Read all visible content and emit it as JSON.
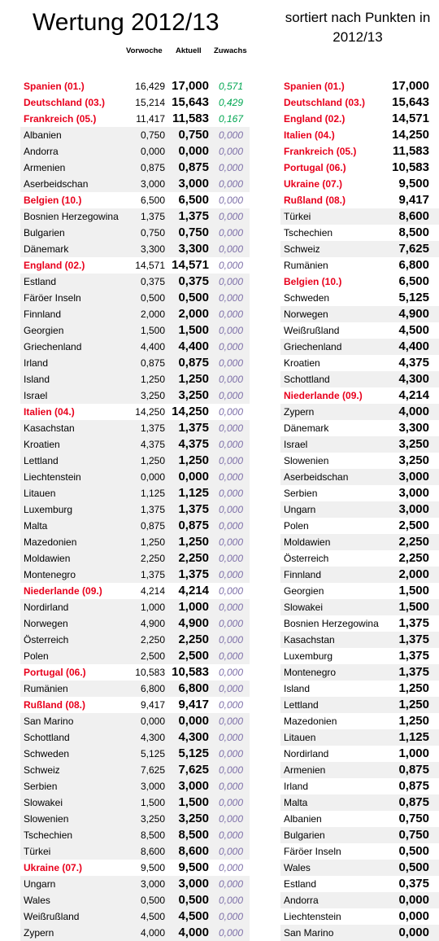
{
  "header": {
    "title": "Wertung 2012/13",
    "subtitle": "sortiert nach Punkten in 2012/13",
    "col_vorwoche": "Vorwoche",
    "col_aktuell": "Aktuell",
    "col_zuwachs": "Zuwachs"
  },
  "left_table": [
    {
      "name": "Spanien (01.)",
      "prev": "16,429",
      "curr": "17,000",
      "inc": "0,571",
      "highlight": true
    },
    {
      "name": "Deutschland (03.)",
      "prev": "15,214",
      "curr": "15,643",
      "inc": "0,429",
      "highlight": true
    },
    {
      "name": "Frankreich (05.)",
      "prev": "11,417",
      "curr": "11,583",
      "inc": "0,167",
      "highlight": true
    },
    {
      "name": "Albanien",
      "prev": "0,750",
      "curr": "0,750",
      "inc": "0,000",
      "highlight": false
    },
    {
      "name": "Andorra",
      "prev": "0,000",
      "curr": "0,000",
      "inc": "0,000",
      "highlight": false
    },
    {
      "name": "Armenien",
      "prev": "0,875",
      "curr": "0,875",
      "inc": "0,000",
      "highlight": false
    },
    {
      "name": "Aserbeidschan",
      "prev": "3,000",
      "curr": "3,000",
      "inc": "0,000",
      "highlight": false
    },
    {
      "name": "Belgien (10.)",
      "prev": "6,500",
      "curr": "6,500",
      "inc": "0,000",
      "highlight": true
    },
    {
      "name": "Bosnien Herzegowina",
      "prev": "1,375",
      "curr": "1,375",
      "inc": "0,000",
      "highlight": false
    },
    {
      "name": "Bulgarien",
      "prev": "0,750",
      "curr": "0,750",
      "inc": "0,000",
      "highlight": false
    },
    {
      "name": "Dänemark",
      "prev": "3,300",
      "curr": "3,300",
      "inc": "0,000",
      "highlight": false
    },
    {
      "name": "England (02.)",
      "prev": "14,571",
      "curr": "14,571",
      "inc": "0,000",
      "highlight": true
    },
    {
      "name": "Estland",
      "prev": "0,375",
      "curr": "0,375",
      "inc": "0,000",
      "highlight": false
    },
    {
      "name": "Färöer Inseln",
      "prev": "0,500",
      "curr": "0,500",
      "inc": "0,000",
      "highlight": false
    },
    {
      "name": "Finnland",
      "prev": "2,000",
      "curr": "2,000",
      "inc": "0,000",
      "highlight": false
    },
    {
      "name": "Georgien",
      "prev": "1,500",
      "curr": "1,500",
      "inc": "0,000",
      "highlight": false
    },
    {
      "name": "Griechenland",
      "prev": "4,400",
      "curr": "4,400",
      "inc": "0,000",
      "highlight": false
    },
    {
      "name": "Irland",
      "prev": "0,875",
      "curr": "0,875",
      "inc": "0,000",
      "highlight": false
    },
    {
      "name": "Island",
      "prev": "1,250",
      "curr": "1,250",
      "inc": "0,000",
      "highlight": false
    },
    {
      "name": "Israel",
      "prev": "3,250",
      "curr": "3,250",
      "inc": "0,000",
      "highlight": false
    },
    {
      "name": "Italien (04.)",
      "prev": "14,250",
      "curr": "14,250",
      "inc": "0,000",
      "highlight": true
    },
    {
      "name": "Kasachstan",
      "prev": "1,375",
      "curr": "1,375",
      "inc": "0,000",
      "highlight": false
    },
    {
      "name": "Kroatien",
      "prev": "4,375",
      "curr": "4,375",
      "inc": "0,000",
      "highlight": false
    },
    {
      "name": "Lettland",
      "prev": "1,250",
      "curr": "1,250",
      "inc": "0,000",
      "highlight": false
    },
    {
      "name": "Liechtenstein",
      "prev": "0,000",
      "curr": "0,000",
      "inc": "0,000",
      "highlight": false
    },
    {
      "name": "Litauen",
      "prev": "1,125",
      "curr": "1,125",
      "inc": "0,000",
      "highlight": false
    },
    {
      "name": "Luxemburg",
      "prev": "1,375",
      "curr": "1,375",
      "inc": "0,000",
      "highlight": false
    },
    {
      "name": "Malta",
      "prev": "0,875",
      "curr": "0,875",
      "inc": "0,000",
      "highlight": false
    },
    {
      "name": "Mazedonien",
      "prev": "1,250",
      "curr": "1,250",
      "inc": "0,000",
      "highlight": false
    },
    {
      "name": "Moldawien",
      "prev": "2,250",
      "curr": "2,250",
      "inc": "0,000",
      "highlight": false
    },
    {
      "name": "Montenegro",
      "prev": "1,375",
      "curr": "1,375",
      "inc": "0,000",
      "highlight": false
    },
    {
      "name": "Niederlande (09.)",
      "prev": "4,214",
      "curr": "4,214",
      "inc": "0,000",
      "highlight": true
    },
    {
      "name": "Nordirland",
      "prev": "1,000",
      "curr": "1,000",
      "inc": "0,000",
      "highlight": false
    },
    {
      "name": "Norwegen",
      "prev": "4,900",
      "curr": "4,900",
      "inc": "0,000",
      "highlight": false
    },
    {
      "name": "Österreich",
      "prev": "2,250",
      "curr": "2,250",
      "inc": "0,000",
      "highlight": false
    },
    {
      "name": "Polen",
      "prev": "2,500",
      "curr": "2,500",
      "inc": "0,000",
      "highlight": false
    },
    {
      "name": "Portugal (06.)",
      "prev": "10,583",
      "curr": "10,583",
      "inc": "0,000",
      "highlight": true
    },
    {
      "name": "Rumänien",
      "prev": "6,800",
      "curr": "6,800",
      "inc": "0,000",
      "highlight": false
    },
    {
      "name": "Rußland (08.)",
      "prev": "9,417",
      "curr": "9,417",
      "inc": "0,000",
      "highlight": true
    },
    {
      "name": "San Marino",
      "prev": "0,000",
      "curr": "0,000",
      "inc": "0,000",
      "highlight": false
    },
    {
      "name": "Schottland",
      "prev": "4,300",
      "curr": "4,300",
      "inc": "0,000",
      "highlight": false
    },
    {
      "name": "Schweden",
      "prev": "5,125",
      "curr": "5,125",
      "inc": "0,000",
      "highlight": false
    },
    {
      "name": "Schweiz",
      "prev": "7,625",
      "curr": "7,625",
      "inc": "0,000",
      "highlight": false
    },
    {
      "name": "Serbien",
      "prev": "3,000",
      "curr": "3,000",
      "inc": "0,000",
      "highlight": false
    },
    {
      "name": "Slowakei",
      "prev": "1,500",
      "curr": "1,500",
      "inc": "0,000",
      "highlight": false
    },
    {
      "name": "Slowenien",
      "prev": "3,250",
      "curr": "3,250",
      "inc": "0,000",
      "highlight": false
    },
    {
      "name": "Tschechien",
      "prev": "8,500",
      "curr": "8,500",
      "inc": "0,000",
      "highlight": false
    },
    {
      "name": "Türkei",
      "prev": "8,600",
      "curr": "8,600",
      "inc": "0,000",
      "highlight": false
    },
    {
      "name": "Ukraine (07.)",
      "prev": "9,500",
      "curr": "9,500",
      "inc": "0,000",
      "highlight": true
    },
    {
      "name": "Ungarn",
      "prev": "3,000",
      "curr": "3,000",
      "inc": "0,000",
      "highlight": false
    },
    {
      "name": "Wales",
      "prev": "0,500",
      "curr": "0,500",
      "inc": "0,000",
      "highlight": false
    },
    {
      "name": "Weißrußland",
      "prev": "4,500",
      "curr": "4,500",
      "inc": "0,000",
      "highlight": false
    },
    {
      "name": "Zypern",
      "prev": "4,000",
      "curr": "4,000",
      "inc": "0,000",
      "highlight": false
    }
  ],
  "right_table": [
    {
      "name": "Spanien (01.)",
      "pts": "17,000",
      "highlight": true
    },
    {
      "name": "Deutschland (03.)",
      "pts": "15,643",
      "highlight": true
    },
    {
      "name": "England (02.)",
      "pts": "14,571",
      "highlight": true
    },
    {
      "name": "Italien (04.)",
      "pts": "14,250",
      "highlight": true
    },
    {
      "name": "Frankreich (05.)",
      "pts": "11,583",
      "highlight": true
    },
    {
      "name": "Portugal (06.)",
      "pts": "10,583",
      "highlight": true
    },
    {
      "name": "Ukraine (07.)",
      "pts": "9,500",
      "highlight": true
    },
    {
      "name": "Rußland (08.)",
      "pts": "9,417",
      "highlight": true
    },
    {
      "name": "Türkei",
      "pts": "8,600",
      "highlight": false
    },
    {
      "name": "Tschechien",
      "pts": "8,500",
      "highlight": false
    },
    {
      "name": "Schweiz",
      "pts": "7,625",
      "highlight": false
    },
    {
      "name": "Rumänien",
      "pts": "6,800",
      "highlight": false
    },
    {
      "name": "Belgien (10.)",
      "pts": "6,500",
      "highlight": true
    },
    {
      "name": "Schweden",
      "pts": "5,125",
      "highlight": false
    },
    {
      "name": "Norwegen",
      "pts": "4,900",
      "highlight": false
    },
    {
      "name": "Weißrußland",
      "pts": "4,500",
      "highlight": false
    },
    {
      "name": "Griechenland",
      "pts": "4,400",
      "highlight": false
    },
    {
      "name": "Kroatien",
      "pts": "4,375",
      "highlight": false
    },
    {
      "name": "Schottland",
      "pts": "4,300",
      "highlight": false
    },
    {
      "name": "Niederlande (09.)",
      "pts": "4,214",
      "highlight": true
    },
    {
      "name": "Zypern",
      "pts": "4,000",
      "highlight": false
    },
    {
      "name": "Dänemark",
      "pts": "3,300",
      "highlight": false
    },
    {
      "name": "Israel",
      "pts": "3,250",
      "highlight": false
    },
    {
      "name": "Slowenien",
      "pts": "3,250",
      "highlight": false
    },
    {
      "name": "Aserbeidschan",
      "pts": "3,000",
      "highlight": false
    },
    {
      "name": "Serbien",
      "pts": "3,000",
      "highlight": false
    },
    {
      "name": "Ungarn",
      "pts": "3,000",
      "highlight": false
    },
    {
      "name": "Polen",
      "pts": "2,500",
      "highlight": false
    },
    {
      "name": "Moldawien",
      "pts": "2,250",
      "highlight": false
    },
    {
      "name": "Österreich",
      "pts": "2,250",
      "highlight": false
    },
    {
      "name": "Finnland",
      "pts": "2,000",
      "highlight": false
    },
    {
      "name": "Georgien",
      "pts": "1,500",
      "highlight": false
    },
    {
      "name": "Slowakei",
      "pts": "1,500",
      "highlight": false
    },
    {
      "name": "Bosnien Herzegowina",
      "pts": "1,375",
      "highlight": false
    },
    {
      "name": "Kasachstan",
      "pts": "1,375",
      "highlight": false
    },
    {
      "name": "Luxemburg",
      "pts": "1,375",
      "highlight": false
    },
    {
      "name": "Montenegro",
      "pts": "1,375",
      "highlight": false
    },
    {
      "name": "Island",
      "pts": "1,250",
      "highlight": false
    },
    {
      "name": "Lettland",
      "pts": "1,250",
      "highlight": false
    },
    {
      "name": "Mazedonien",
      "pts": "1,250",
      "highlight": false
    },
    {
      "name": "Litauen",
      "pts": "1,125",
      "highlight": false
    },
    {
      "name": "Nordirland",
      "pts": "1,000",
      "highlight": false
    },
    {
      "name": "Armenien",
      "pts": "0,875",
      "highlight": false
    },
    {
      "name": "Irland",
      "pts": "0,875",
      "highlight": false
    },
    {
      "name": "Malta",
      "pts": "0,875",
      "highlight": false
    },
    {
      "name": "Albanien",
      "pts": "0,750",
      "highlight": false
    },
    {
      "name": "Bulgarien",
      "pts": "0,750",
      "highlight": false
    },
    {
      "name": "Färöer Inseln",
      "pts": "0,500",
      "highlight": false
    },
    {
      "name": "Wales",
      "pts": "0,500",
      "highlight": false
    },
    {
      "name": "Estland",
      "pts": "0,375",
      "highlight": false
    },
    {
      "name": "Andorra",
      "pts": "0,000",
      "highlight": false
    },
    {
      "name": "Liechtenstein",
      "pts": "0,000",
      "highlight": false
    },
    {
      "name": "San Marino",
      "pts": "0,000",
      "highlight": false
    }
  ]
}
